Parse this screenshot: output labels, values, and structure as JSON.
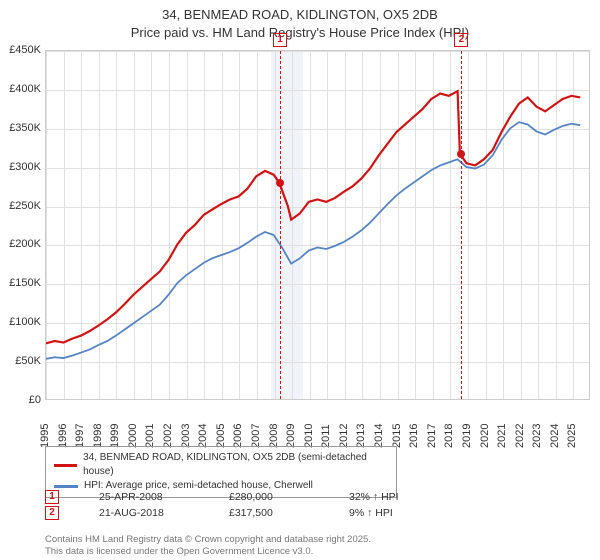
{
  "title_line1": "34, BENMEAD ROAD, KIDLINGTON, OX5 2DB",
  "title_line2": "Price paid vs. HM Land Registry's House Price Index (HPI)",
  "chart": {
    "type": "line",
    "x_start_year": 1995,
    "x_end_year": 2026,
    "ylim_min": 0,
    "ylim_max": 450000,
    "ytick_step": 50000,
    "ytick_prefix": "£",
    "ytick_labels": [
      "£0",
      "£50K",
      "£100K",
      "£150K",
      "£200K",
      "£250K",
      "£300K",
      "£350K",
      "£400K",
      "£450K"
    ],
    "grid_color": "#e0e0e0",
    "border_color": "#cccccc",
    "background_color": "#ffffff",
    "shade_start_year": 2007.8,
    "shade_end_year": 2009.6,
    "shade_color": "#eaf0f6",
    "series": [
      {
        "name": "34, BENMEAD ROAD, KIDLINGTON, OX5 2DB (semi-detached house)",
        "color": "#d11313",
        "line_width": 2.2,
        "points": [
          [
            1995,
            72000
          ],
          [
            1995.5,
            75000
          ],
          [
            1996,
            73000
          ],
          [
            1996.5,
            78000
          ],
          [
            1997,
            82000
          ],
          [
            1997.5,
            88000
          ],
          [
            1998,
            95000
          ],
          [
            1998.5,
            103000
          ],
          [
            1999,
            112000
          ],
          [
            1999.5,
            123000
          ],
          [
            2000,
            135000
          ],
          [
            2000.5,
            145000
          ],
          [
            2001,
            155000
          ],
          [
            2001.5,
            165000
          ],
          [
            2002,
            180000
          ],
          [
            2002.5,
            200000
          ],
          [
            2003,
            215000
          ],
          [
            2003.5,
            225000
          ],
          [
            2004,
            238000
          ],
          [
            2004.5,
            245000
          ],
          [
            2005,
            252000
          ],
          [
            2005.5,
            258000
          ],
          [
            2006,
            262000
          ],
          [
            2006.5,
            272000
          ],
          [
            2007,
            288000
          ],
          [
            2007.5,
            295000
          ],
          [
            2008,
            290000
          ],
          [
            2008.31,
            280000
          ],
          [
            2008.8,
            250000
          ],
          [
            2009,
            232000
          ],
          [
            2009.5,
            240000
          ],
          [
            2010,
            255000
          ],
          [
            2010.5,
            258000
          ],
          [
            2011,
            255000
          ],
          [
            2011.5,
            260000
          ],
          [
            2012,
            268000
          ],
          [
            2012.5,
            275000
          ],
          [
            2013,
            285000
          ],
          [
            2013.5,
            298000
          ],
          [
            2014,
            315000
          ],
          [
            2014.5,
            330000
          ],
          [
            2015,
            345000
          ],
          [
            2015.5,
            355000
          ],
          [
            2016,
            365000
          ],
          [
            2016.5,
            375000
          ],
          [
            2017,
            388000
          ],
          [
            2017.5,
            395000
          ],
          [
            2018,
            392000
          ],
          [
            2018.5,
            398000
          ],
          [
            2018.63,
            317500
          ],
          [
            2019,
            305000
          ],
          [
            2019.5,
            302000
          ],
          [
            2020,
            310000
          ],
          [
            2020.5,
            322000
          ],
          [
            2021,
            345000
          ],
          [
            2021.5,
            365000
          ],
          [
            2022,
            382000
          ],
          [
            2022.5,
            390000
          ],
          [
            2023,
            378000
          ],
          [
            2023.5,
            372000
          ],
          [
            2024,
            380000
          ],
          [
            2024.5,
            388000
          ],
          [
            2025,
            392000
          ],
          [
            2025.5,
            390000
          ]
        ]
      },
      {
        "name": "HPI: Average price, semi-detached house, Cherwell",
        "color": "#5584c4",
        "line_width": 1.8,
        "points": [
          [
            1995,
            52000
          ],
          [
            1995.5,
            54000
          ],
          [
            1996,
            53000
          ],
          [
            1996.5,
            56000
          ],
          [
            1997,
            60000
          ],
          [
            1997.5,
            64000
          ],
          [
            1998,
            70000
          ],
          [
            1998.5,
            75000
          ],
          [
            1999,
            82000
          ],
          [
            1999.5,
            90000
          ],
          [
            2000,
            98000
          ],
          [
            2000.5,
            106000
          ],
          [
            2001,
            114000
          ],
          [
            2001.5,
            122000
          ],
          [
            2002,
            135000
          ],
          [
            2002.5,
            150000
          ],
          [
            2003,
            160000
          ],
          [
            2003.5,
            168000
          ],
          [
            2004,
            176000
          ],
          [
            2004.5,
            182000
          ],
          [
            2005,
            186000
          ],
          [
            2005.5,
            190000
          ],
          [
            2006,
            195000
          ],
          [
            2006.5,
            202000
          ],
          [
            2007,
            210000
          ],
          [
            2007.5,
            216000
          ],
          [
            2008,
            212000
          ],
          [
            2008.5,
            195000
          ],
          [
            2009,
            175000
          ],
          [
            2009.5,
            182000
          ],
          [
            2010,
            192000
          ],
          [
            2010.5,
            196000
          ],
          [
            2011,
            194000
          ],
          [
            2011.5,
            198000
          ],
          [
            2012,
            203000
          ],
          [
            2012.5,
            210000
          ],
          [
            2013,
            218000
          ],
          [
            2013.5,
            228000
          ],
          [
            2014,
            240000
          ],
          [
            2014.5,
            252000
          ],
          [
            2015,
            263000
          ],
          [
            2015.5,
            272000
          ],
          [
            2016,
            280000
          ],
          [
            2016.5,
            288000
          ],
          [
            2017,
            296000
          ],
          [
            2017.5,
            302000
          ],
          [
            2018,
            306000
          ],
          [
            2018.5,
            310000
          ],
          [
            2019,
            300000
          ],
          [
            2019.5,
            298000
          ],
          [
            2020,
            303000
          ],
          [
            2020.5,
            315000
          ],
          [
            2021,
            335000
          ],
          [
            2021.5,
            350000
          ],
          [
            2022,
            358000
          ],
          [
            2022.5,
            355000
          ],
          [
            2023,
            346000
          ],
          [
            2023.5,
            342000
          ],
          [
            2024,
            348000
          ],
          [
            2024.5,
            353000
          ],
          [
            2025,
            356000
          ],
          [
            2025.5,
            354000
          ]
        ]
      }
    ],
    "markers": [
      {
        "num": "1",
        "year": 2008.31,
        "price": 280000,
        "color": "#d11313"
      },
      {
        "num": "2",
        "year": 2018.63,
        "price": 317500,
        "color": "#d11313"
      }
    ]
  },
  "legend": {
    "rows": [
      {
        "color": "#d11313",
        "label": "34, BENMEAD ROAD, KIDLINGTON, OX5 2DB (semi-detached house)"
      },
      {
        "color": "#5584c4",
        "label": "HPI: Average price, semi-detached house, Cherwell"
      }
    ]
  },
  "table": {
    "rows": [
      {
        "num": "1",
        "color": "#d11313",
        "date": "25-APR-2008",
        "price": "£280,000",
        "delta": "32% ↑ HPI"
      },
      {
        "num": "2",
        "color": "#d11313",
        "date": "21-AUG-2018",
        "price": "£317,500",
        "delta": "9% ↑ HPI"
      }
    ]
  },
  "footer_line1": "Contains HM Land Registry data © Crown copyright and database right 2025.",
  "footer_line2": "This data is licensed under the Open Government Licence v3.0."
}
